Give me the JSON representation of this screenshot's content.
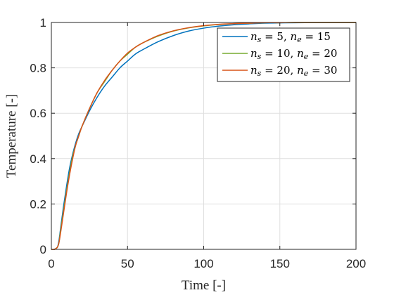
{
  "chart_data": {
    "type": "line",
    "title": "",
    "xlabel": "Time [-]",
    "ylabel": "Temperature [-]",
    "xlim": [
      0,
      200
    ],
    "ylim": [
      0,
      1
    ],
    "xticks": [
      "0",
      "50",
      "100",
      "150",
      "200"
    ],
    "yticks": [
      "0",
      "0.2",
      "0.4",
      "0.6",
      "0.8",
      "1"
    ],
    "grid": true,
    "legend_position": "top-right",
    "x": [
      0,
      2,
      4,
      5,
      6,
      8,
      10,
      12,
      14,
      16,
      18,
      20,
      25,
      30,
      35,
      40,
      45,
      50,
      55,
      60,
      70,
      80,
      90,
      100,
      110,
      120,
      130,
      140,
      150,
      160,
      180,
      200
    ],
    "series": [
      {
        "name": "n_s = 5, n_e = 15",
        "color": "#0072BD",
        "values": [
          0,
          0,
          0.01,
          0.04,
          0.09,
          0.19,
          0.28,
          0.36,
          0.42,
          0.47,
          0.51,
          0.54,
          0.61,
          0.67,
          0.72,
          0.76,
          0.8,
          0.83,
          0.86,
          0.88,
          0.915,
          0.942,
          0.962,
          0.975,
          0.984,
          0.99,
          0.994,
          0.997,
          0.998,
          0.999,
          1.0,
          1.0
        ]
      },
      {
        "name": "n_s = 10, n_e = 20",
        "color": "#77AC30",
        "values": [
          0,
          0,
          0.01,
          0.03,
          0.08,
          0.17,
          0.26,
          0.34,
          0.41,
          0.46,
          0.5,
          0.54,
          0.62,
          0.69,
          0.74,
          0.79,
          0.83,
          0.86,
          0.89,
          0.91,
          0.94,
          0.962,
          0.976,
          0.985,
          0.991,
          0.995,
          0.997,
          0.999,
          0.999,
          1.0,
          1.0,
          1.0
        ]
      },
      {
        "name": "n_s = 20, n_e = 30",
        "color": "#D95319",
        "values": [
          0,
          0,
          0.01,
          0.03,
          0.07,
          0.16,
          0.25,
          0.33,
          0.4,
          0.46,
          0.5,
          0.54,
          0.62,
          0.69,
          0.745,
          0.79,
          0.83,
          0.865,
          0.89,
          0.91,
          0.942,
          0.963,
          0.977,
          0.986,
          0.992,
          0.995,
          0.997,
          0.999,
          0.999,
          1.0,
          1.0,
          1.0
        ]
      }
    ]
  },
  "legend": {
    "items": [
      {
        "name": "n",
        "sub1": "s",
        "mid": " = 5, ",
        "name2": "n",
        "sub2": "e",
        "tail": " = 15"
      },
      {
        "name": "n",
        "sub1": "s",
        "mid": " = 10, ",
        "name2": "n",
        "sub2": "e",
        "tail": " = 20"
      },
      {
        "name": "n",
        "sub1": "s",
        "mid": " = 20, ",
        "name2": "n",
        "sub2": "e",
        "tail": " = 30"
      }
    ]
  }
}
